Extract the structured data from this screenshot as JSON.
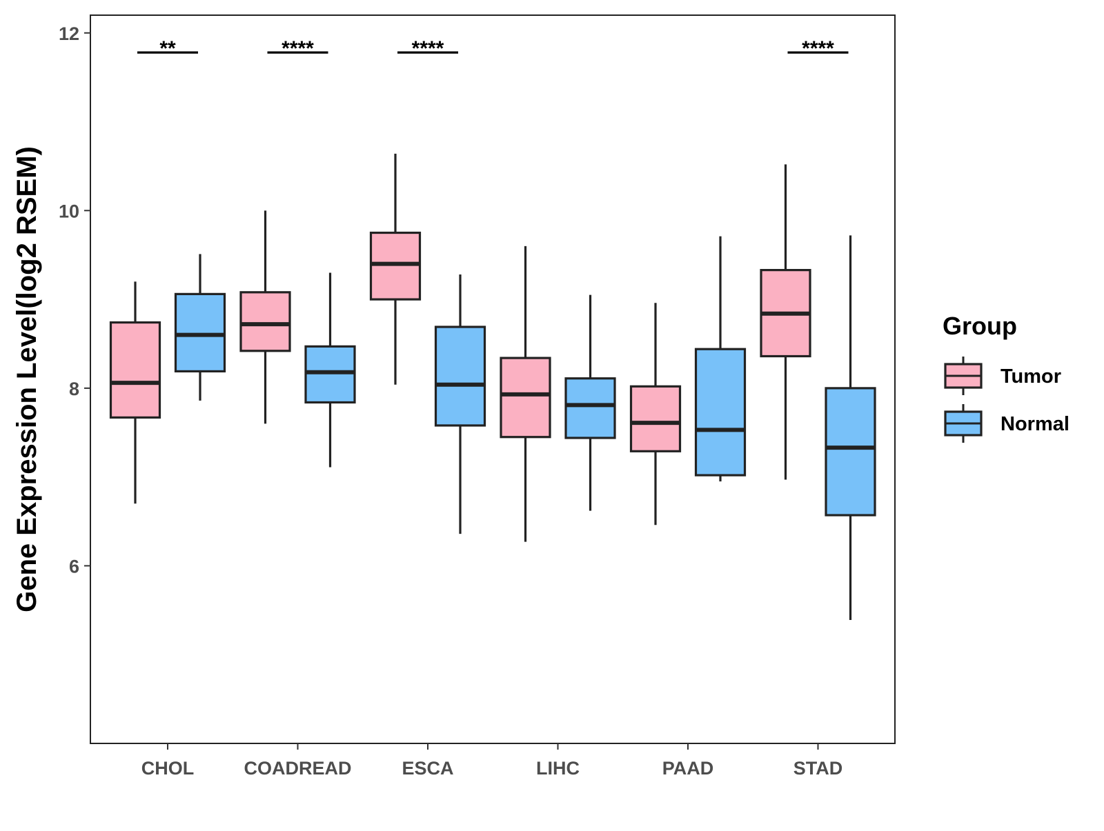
{
  "chart_data": {
    "type": "boxplot",
    "title": "",
    "xlabel": "",
    "ylabel": "Gene Expression Level(log2 RSEM)",
    "ylim": [
      4.0,
      12.2
    ],
    "yticks": [
      6,
      8,
      10,
      12
    ],
    "ytick_labels": [
      "6",
      "8",
      "10",
      "12"
    ],
    "grid": false,
    "categories": [
      "CHOL",
      "COADREAD",
      "ESCA",
      "LIHC",
      "PAAD",
      "STAD"
    ],
    "legend": {
      "title": "Group",
      "position": "right",
      "entries": [
        {
          "name": "Tumor",
          "color": "#FBB1C2"
        },
        {
          "name": "Normal",
          "color": "#78C1F9"
        }
      ]
    },
    "series": [
      {
        "name": "Tumor",
        "color": "#FBB1C2",
        "boxes": [
          {
            "category": "CHOL",
            "whisker_low": 6.7,
            "q1": 7.67,
            "median": 8.06,
            "q3": 8.74,
            "whisker_high": 9.2
          },
          {
            "category": "COADREAD",
            "whisker_low": 7.6,
            "q1": 8.42,
            "median": 8.72,
            "q3": 9.08,
            "whisker_high": 10.0
          },
          {
            "category": "ESCA",
            "whisker_low": 8.04,
            "q1": 9.0,
            "median": 9.4,
            "q3": 9.75,
            "whisker_high": 10.64
          },
          {
            "category": "LIHC",
            "whisker_low": 6.27,
            "q1": 7.45,
            "median": 7.93,
            "q3": 8.34,
            "whisker_high": 9.6
          },
          {
            "category": "PAAD",
            "whisker_low": 6.46,
            "q1": 7.29,
            "median": 7.61,
            "q3": 8.02,
            "whisker_high": 8.96
          },
          {
            "category": "STAD",
            "whisker_low": 6.97,
            "q1": 8.36,
            "median": 8.84,
            "q3": 9.33,
            "whisker_high": 10.52
          }
        ]
      },
      {
        "name": "Normal",
        "color": "#78C1F9",
        "boxes": [
          {
            "category": "CHOL",
            "whisker_low": 7.86,
            "q1": 8.19,
            "median": 8.6,
            "q3": 9.06,
            "whisker_high": 9.51
          },
          {
            "category": "COADREAD",
            "whisker_low": 7.11,
            "q1": 7.84,
            "median": 8.18,
            "q3": 8.47,
            "whisker_high": 9.3
          },
          {
            "category": "ESCA",
            "whisker_low": 6.36,
            "q1": 7.58,
            "median": 8.04,
            "q3": 8.69,
            "whisker_high": 9.28
          },
          {
            "category": "LIHC",
            "whisker_low": 6.62,
            "q1": 7.44,
            "median": 7.81,
            "q3": 8.11,
            "whisker_high": 9.05
          },
          {
            "category": "PAAD",
            "whisker_low": 6.95,
            "q1": 7.02,
            "median": 7.53,
            "q3": 8.44,
            "whisker_high": 9.71
          },
          {
            "category": "STAD",
            "whisker_low": 5.39,
            "q1": 6.57,
            "median": 7.33,
            "q3": 8.0,
            "whisker_high": 9.72
          }
        ]
      }
    ],
    "significance": [
      {
        "category": "CHOL",
        "label": "**",
        "y": 11.78
      },
      {
        "category": "COADREAD",
        "label": "****",
        "y": 11.78
      },
      {
        "category": "ESCA",
        "label": "****",
        "y": 11.78
      },
      {
        "category": "STAD",
        "label": "****",
        "y": 11.78
      }
    ]
  }
}
